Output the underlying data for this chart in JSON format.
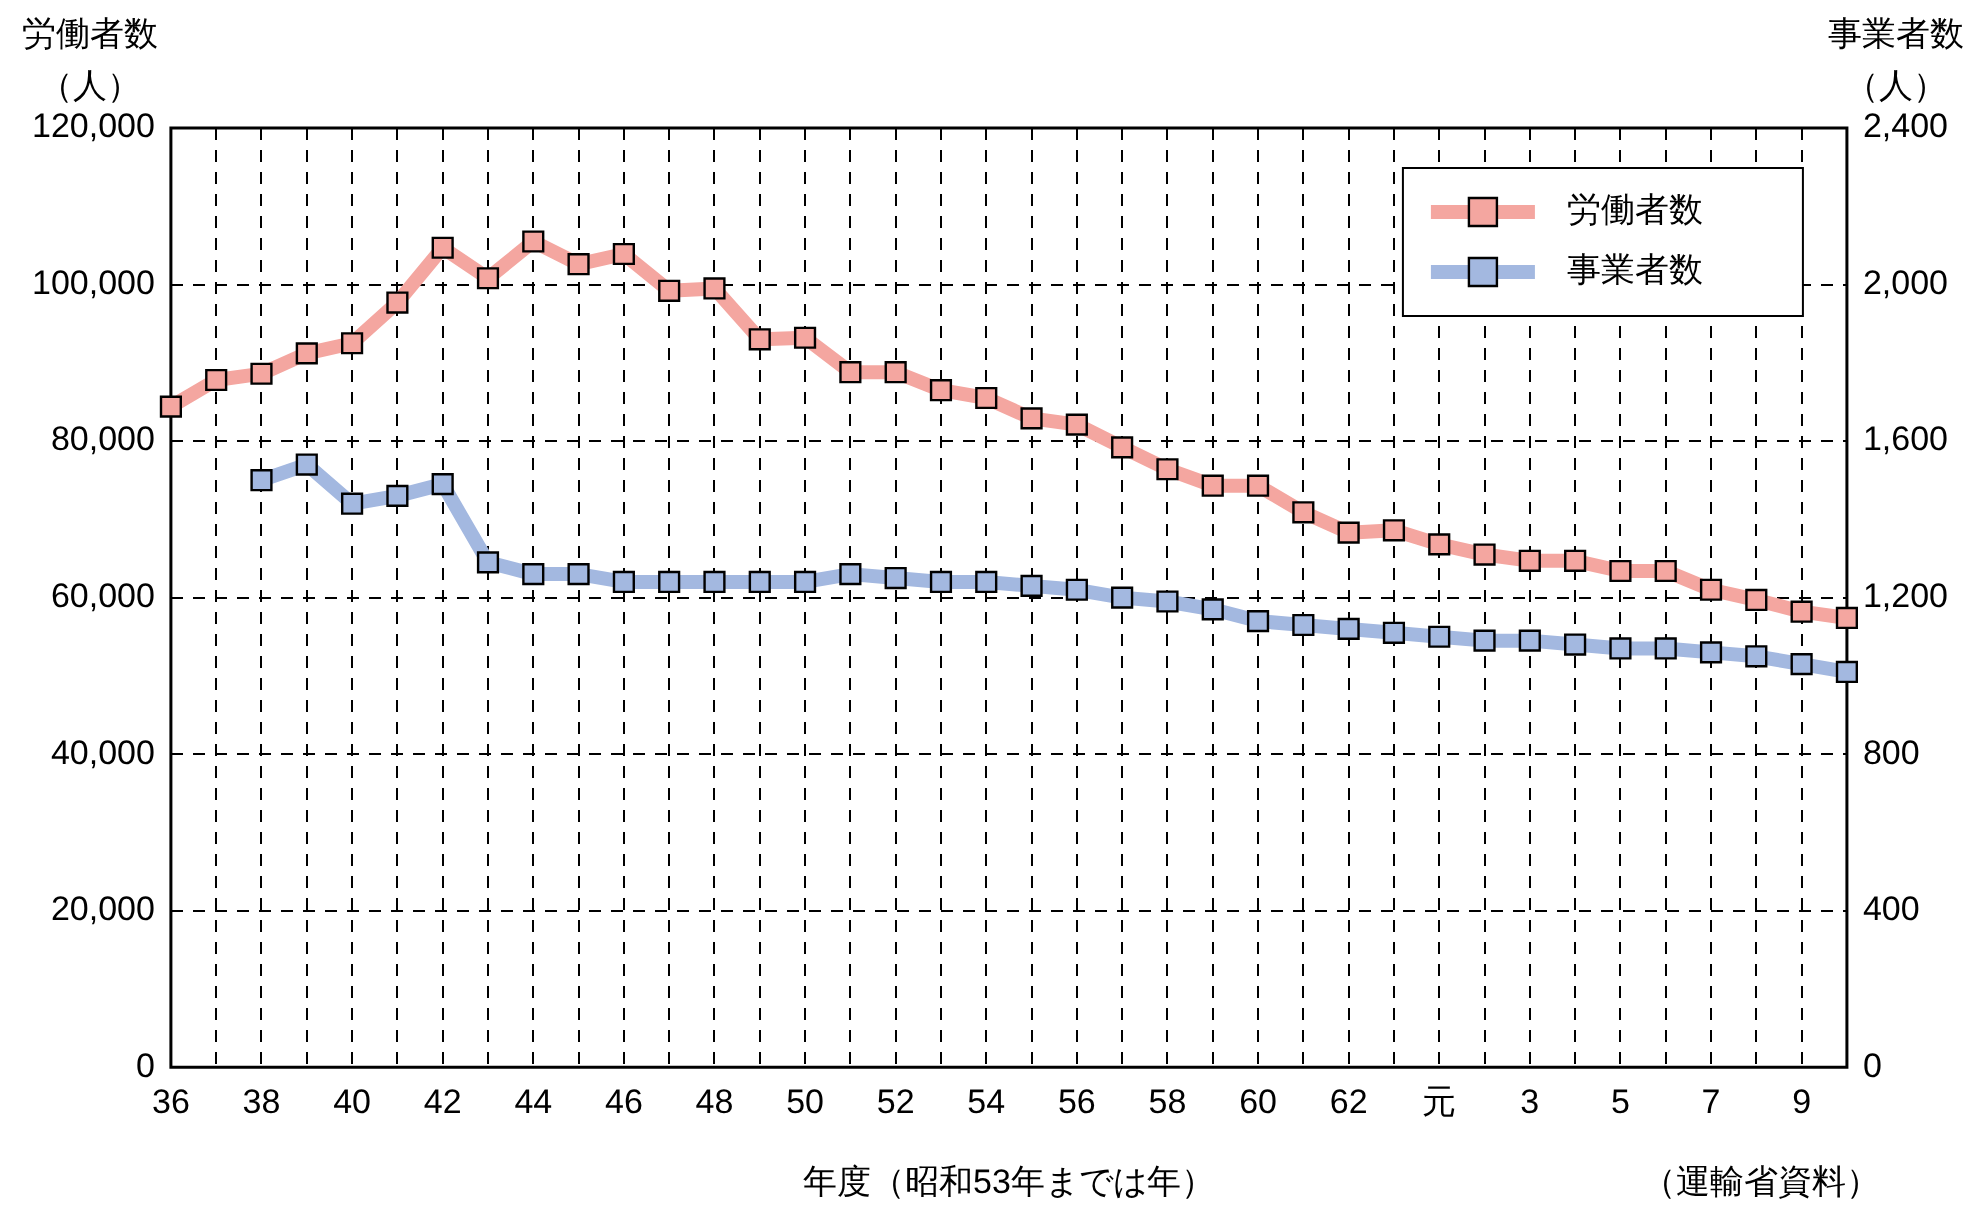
{
  "chart_data": {
    "type": "line",
    "xlabel": "年度（昭和53年までは年）",
    "ylabel": "労働者数（人）",
    "y2label": "事業者数（人）",
    "annotations": [
      "（運輸省資料）"
    ],
    "categories": [
      "36",
      null,
      "38",
      null,
      "40",
      null,
      "42",
      null,
      "44",
      null,
      "46",
      null,
      "48",
      null,
      "50",
      null,
      "52",
      null,
      "54",
      null,
      "56",
      null,
      "58",
      null,
      "60",
      null,
      "62",
      null,
      "元",
      null,
      "3",
      null,
      "5",
      null,
      "7",
      null,
      "9",
      null
    ],
    "series": [
      {
        "name": "労働者数",
        "color": "#f4a6a0",
        "values": [
          84400,
          87800,
          88600,
          91200,
          92500,
          97700,
          104700,
          100800,
          105500,
          102600,
          103900,
          99200,
          99500,
          93000,
          93200,
          88800,
          88800,
          86500,
          85500,
          82900,
          82100,
          79200,
          76400,
          74300,
          74300,
          70900,
          68300,
          68600,
          66800,
          65500,
          64700,
          64700,
          63400,
          63400,
          61000,
          59700,
          58200,
          57400
        ]
      },
      {
        "name": "事業者数",
        "color": "#a3b8e0",
        "axis": "y2",
        "values": [
          null,
          null,
          1500,
          1540,
          1440,
          1460,
          1490,
          1290,
          1260,
          1260,
          1240,
          1240,
          1240,
          1240,
          1240,
          1260,
          1250,
          1240,
          1240,
          1230,
          1220,
          1200,
          1190,
          1170,
          1140,
          1130,
          1120,
          1110,
          1100,
          1090,
          1090,
          1080,
          1070,
          1070,
          1060,
          1050,
          1030,
          1010
        ]
      }
    ],
    "ylim": [
      0,
      120000
    ],
    "yticks": [
      0,
      {
        "value": 20000,
        "label": "20,000"
      },
      {
        "value": 40000,
        "label": "40,000"
      },
      {
        "value": 60000,
        "label": "60,000"
      },
      {
        "value": 80000,
        "label": "80,000"
      },
      {
        "value": 100000,
        "label": "100,000"
      },
      {
        "value": 120000,
        "label": "120,000"
      }
    ],
    "y2lim": [
      0,
      2400
    ],
    "y2ticks": [
      0,
      400,
      800,
      {
        "value": 1200,
        "label": "1,200"
      },
      {
        "value": 1600,
        "label": "1,600"
      },
      {
        "value": 2000,
        "label": "2,000"
      },
      {
        "value": 2400,
        "label": "2,400"
      }
    ],
    "grid": true,
    "legend": "top right",
    "marker": "square",
    "line_style": "solid"
  }
}
